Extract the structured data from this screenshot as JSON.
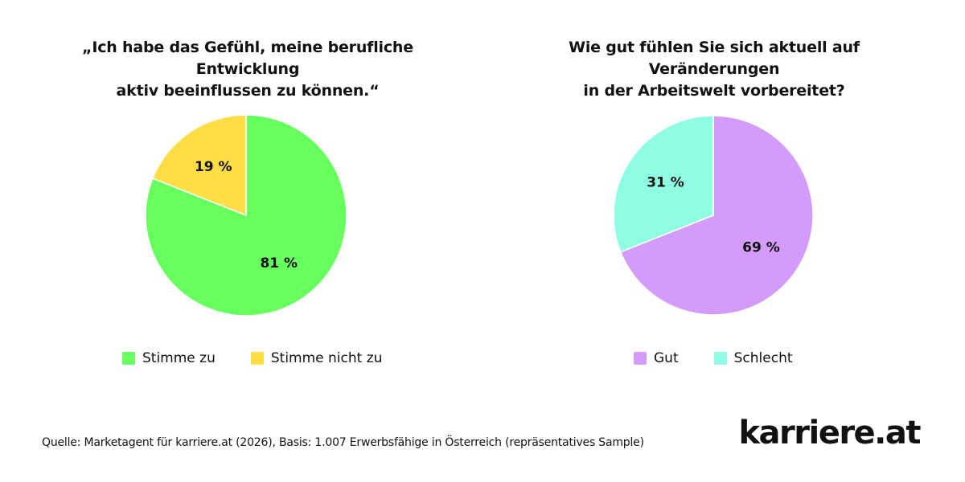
{
  "source": "Quelle: Marketagent für karriere.at (2026), Basis: 1.007 Erwerbsfähige in Österreich (repräsentatives Sample)",
  "brand": "karriere.at",
  "chart_data": [
    {
      "type": "pie",
      "title_lines": [
        "„Ich habe das Gefühl, meine berufliche Entwicklung",
        "aktiv beeinflussen zu können.“"
      ],
      "slices": [
        {
          "label": "Stimme zu",
          "value": 81,
          "display": "81 %",
          "color": "#66ff5e"
        },
        {
          "label": "Stimme nicht zu",
          "value": 19,
          "display": "19 %",
          "color": "#ffdd44"
        }
      ],
      "legend": [
        "Stimme zu",
        "Stimme nicht zu"
      ],
      "legend_position": "bottom"
    },
    {
      "type": "pie",
      "title_lines": [
        "Wie gut fühlen Sie sich aktuell auf Veränderungen",
        "in der Arbeitswelt vorbereitet?"
      ],
      "slices": [
        {
          "label": "Gut",
          "value": 69,
          "display": "69 %",
          "color": "#d59bfb"
        },
        {
          "label": "Schlecht",
          "value": 31,
          "display": "31 %",
          "color": "#8ffde3"
        }
      ],
      "legend": [
        "Gut",
        "Schlecht"
      ],
      "legend_position": "bottom"
    }
  ]
}
